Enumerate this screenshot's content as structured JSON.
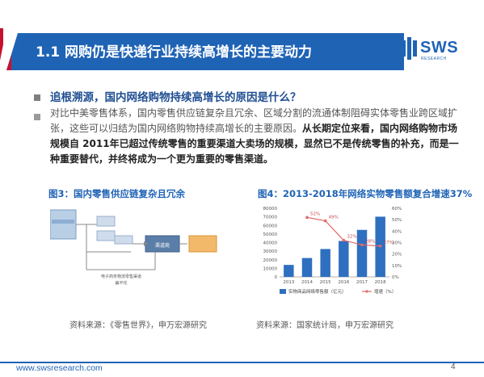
{
  "header": {
    "title": "1.1 网购仍是快递行业持续高增长的主要动力"
  },
  "logo": {
    "text": "SWS",
    "subtext": "RESEARCH"
  },
  "subtitle": "追根溯源，国内网络购物持续高增长的原因是什么？",
  "paragraph": {
    "plain": "对比中美零售体系，国内零售供应链复杂且冗余、区域分割的流通体制阻碍实体零售业跨区域扩张，这些可以归结为国内网络购物持续高增长的主要原因。",
    "highlight": "从长期定位来看，国内网络购物市场规模自 2011年已超过传统零售的重要渠道大卖场的规模，显然已不是传统零售的补充，而是一种重要替代，并终将成为一个更为重要的零售渠道。"
  },
  "figure3": {
    "caption": "图3：国内零售供应链复杂且冗余",
    "source": "资料来源：《零售世界》，申万宏源研究",
    "diagram_labels": [
      "电子商务物流零售渠道",
      "扁平化",
      "渠道商"
    ]
  },
  "figure4": {
    "caption": "图4：2013-2018年网络实物零售额复合增速37%",
    "source": "资料来源：国家统计局，申万宏源研究"
  },
  "chart_data": {
    "type": "bar",
    "categories": [
      "2013",
      "2014",
      "2015",
      "2016",
      "2017",
      "2018"
    ],
    "series": [
      {
        "name": "实物商品网络零售额（亿元）",
        "type": "bar",
        "color": "#2e6fbf",
        "values": [
          14000,
          22000,
          32500,
          41900,
          54800,
          70200
        ],
        "axis": "left"
      },
      {
        "name": "增速（%）",
        "type": "line",
        "color": "#e06a6a",
        "values": [
          null,
          52,
          49,
          32,
          28,
          27
        ],
        "axis": "right"
      }
    ],
    "left_axis": {
      "ticks": [
        "0",
        "10000",
        "20000",
        "30000",
        "40000",
        "50000",
        "60000",
        "70000",
        "80000"
      ],
      "ylim": [
        0,
        80000
      ]
    },
    "right_axis": {
      "ticks": [
        "0%",
        "10%",
        "20%",
        "30%",
        "40%",
        "50%",
        "60%"
      ],
      "ylim": [
        0,
        60
      ]
    },
    "data_labels": [
      "52%",
      "49%",
      "32%",
      "28%",
      "27%"
    ],
    "legend_position": "bottom"
  },
  "footer": {
    "url": "www.swsresearch.com",
    "page": "4"
  },
  "colors": {
    "brand_blue": "#1f63b5",
    "header_red": "#c8102e"
  }
}
